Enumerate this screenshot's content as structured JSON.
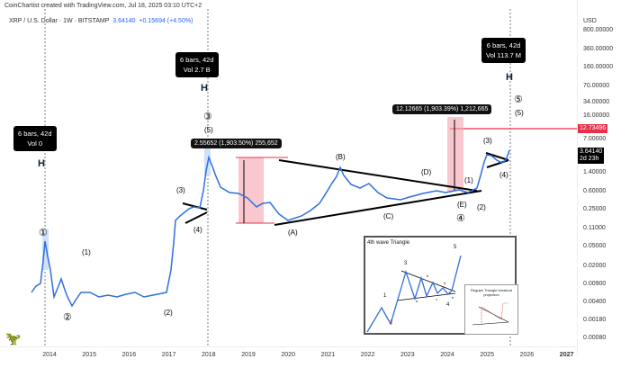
{
  "header": {
    "created": "CoinChartist created with TradingView.com, Jul 18, 2025 03:10 UTC+2",
    "symbol": "XRP / U.S. Dollar · 1W · BITSTAMP",
    "price": "3.64140",
    "change": "+0.15694 (+4.50%)"
  },
  "y_axis": {
    "unit": "USD",
    "ticks": [
      "800.00000",
      "360.00000",
      "160.00000",
      "70.00000",
      "34.00000",
      "16.00000",
      "7.00000",
      "1.40000",
      "0.60000",
      "0.25000",
      "0.11000",
      "0.05000",
      "0.02000",
      "0.00900",
      "0.00400",
      "0.00180",
      "0.00080"
    ],
    "target_tag": "12.73496",
    "price_tag": "3.64140",
    "countdown": "2d 23h"
  },
  "x_axis": {
    "ticks": [
      "2014",
      "2015",
      "2016",
      "2017",
      "2018",
      "2019",
      "2020",
      "2021",
      "2022",
      "2023",
      "2024",
      "2025",
      "2026",
      "2027"
    ]
  },
  "callouts": [
    {
      "bars": "6 bars, 42d",
      "vol": "Vol 0"
    },
    {
      "bars": "6 bars, 42d",
      "vol": "Vol 2.7 B"
    },
    {
      "bars": "6 bars, 42d",
      "vol": "Vol 113.7 M"
    }
  ],
  "measures": {
    "first": "2.55652 (1,903.50%) 255,652",
    "second": "12.12665 (1,903.39%) 1,212,665"
  },
  "waves": {
    "c1": "①",
    "c2": "②",
    "p1": "(1)",
    "p2": "(2)",
    "p3a": "(3)",
    "p4a": "(4)",
    "c3": "③",
    "p5a": "(5)",
    "A": "(A)",
    "B": "(B)",
    "C": "(C)",
    "D": "(D)",
    "E": "(E)",
    "c4": "④",
    "w1": "(1)",
    "w2": "(2)",
    "w3": "(3)",
    "w4": "(4)",
    "c5": "⑤",
    "w5": "(5)"
  },
  "inset": {
    "title": "4th wave Triangle",
    "n1": "1",
    "n2": "2",
    "n3": "3",
    "n4": "4",
    "n5": "5",
    "a": "a",
    "b": "b",
    "c": "c",
    "d": "d",
    "e": "e",
    "sub_title": "Regular Triangle breakout projection"
  },
  "colors": {
    "price_line": "#2f6fdb",
    "target": "#e8304a",
    "measure": "#f4a3ae"
  }
}
